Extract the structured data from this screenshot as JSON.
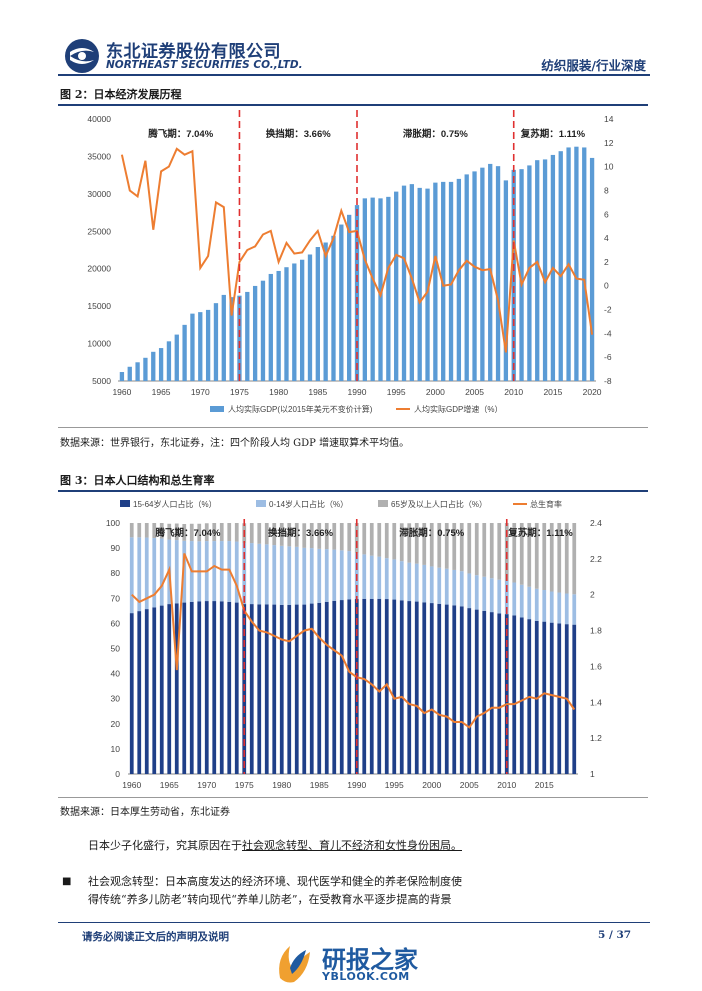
{
  "header": {
    "company_cn": "东北证券股份有限公司",
    "company_en": "NORTHEAST SECURITIES CO.,LTD.",
    "section": "纺织服装/行业深度"
  },
  "figure2": {
    "title": "图  2：日本经济发展历程",
    "source": "数据来源：世界银行，东北证券，注：四个阶段人均 GDP 增速取算术平均值。",
    "periods": [
      "腾飞期：7.04%",
      "换挡期：3.66%",
      "滞胀期：0.75%",
      "复苏期：1.11%"
    ],
    "legend": [
      "人均实际GDP(以2015年美元不变价计算)",
      "人均实际GDP增速（%）"
    ],
    "colors": {
      "bar": "#5b9bd5",
      "line": "#ed7d31",
      "divider": "#e03030"
    }
  },
  "figure3": {
    "title": "图  3：日本人口结构和总生育率",
    "source": "数据来源：日本厚生劳动省，东北证券",
    "periods": [
      "腾飞期：7.04%",
      "换挡期：3.66%",
      "滞胀期：0.75%",
      "复苏期：1.11%"
    ],
    "legend": [
      "15-64岁人口占比（%）",
      "0-14岁人口占比（%）",
      "65岁及以上人口占比（%）",
      "总生育率"
    ],
    "colors": {
      "working": "#1f3f88",
      "young": "#9dbde3",
      "old": "#b0b0b0",
      "line": "#ed7d31"
    }
  },
  "body": {
    "p1_pre": "日本少子化盛行，究其原因在于",
    "p1_ul": "社会观念转型、育儿不经济和女性身份困局。",
    "bullet": "■",
    "b1_line1_pre": "社会观念转型：",
    "b1_line1": "日本高度发达的经济环境、现代医学和健全的养老保险制度使",
    "b1_line2": "得传统“养多儿防老”转向现代“养单儿防老”，在受教育水平逐步提高的背景"
  },
  "footer": {
    "notice": "请务必阅读正文后的声明及说明",
    "page": "5 / 37",
    "watermark": "研报之家",
    "watermark_url": "YBLOOK.COM"
  },
  "chart_data": [
    {
      "type": "bar+line",
      "title": "日本经济发展历程",
      "x_ticks": [
        1960,
        1965,
        1970,
        1975,
        1980,
        1985,
        1990,
        1995,
        2000,
        2005,
        2010,
        2015,
        2020
      ],
      "y_left_ticks": [
        5000,
        10000,
        15000,
        20000,
        25000,
        30000,
        35000,
        40000
      ],
      "y_right_ticks": [
        -8,
        -6,
        -4,
        -2,
        0,
        2,
        4,
        6,
        8,
        10,
        12,
        14
      ],
      "ylim_left": [
        5000,
        40000
      ],
      "ylim_right": [
        -8,
        14
      ],
      "period_dividers": [
        1975,
        1990,
        2010
      ],
      "years": [
        1960,
        1961,
        1962,
        1963,
        1964,
        1965,
        1966,
        1967,
        1968,
        1969,
        1970,
        1971,
        1972,
        1973,
        1974,
        1975,
        1976,
        1977,
        1978,
        1979,
        1980,
        1981,
        1982,
        1983,
        1984,
        1985,
        1986,
        1987,
        1988,
        1989,
        1990,
        1991,
        1992,
        1993,
        1994,
        1995,
        1996,
        1997,
        1998,
        1999,
        2000,
        2001,
        2002,
        2003,
        2004,
        2005,
        2006,
        2007,
        2008,
        2009,
        2010,
        2011,
        2012,
        2013,
        2014,
        2015,
        2016,
        2017,
        2018,
        2019,
        2020
      ],
      "series": [
        {
          "name": "人均实际GDP(以2015年美元不变价计算)",
          "kind": "bar",
          "axis": "left",
          "values": [
            6200,
            6900,
            7500,
            8100,
            8900,
            9400,
            10300,
            11200,
            12500,
            14000,
            14200,
            14500,
            15400,
            16500,
            16200,
            16400,
            16900,
            17700,
            18400,
            19300,
            19700,
            20200,
            20700,
            21200,
            21900,
            22900,
            23500,
            24400,
            25900,
            27200,
            28500,
            29400,
            29500,
            29400,
            29600,
            30300,
            31100,
            31300,
            30800,
            30700,
            31500,
            31600,
            31600,
            32000,
            32600,
            33000,
            33500,
            34000,
            33700,
            31800,
            33200,
            33300,
            33800,
            34500,
            34600,
            35200,
            35700,
            36200,
            36300,
            36200,
            34800
          ]
        },
        {
          "name": "人均实际GDP增速（%）",
          "kind": "line",
          "axis": "right",
          "values": [
            11.0,
            8.0,
            7.5,
            10.5,
            4.7,
            9.6,
            10.0,
            11.5,
            11.0,
            11.3,
            1.5,
            2.5,
            7.0,
            6.6,
            -2.5,
            2.0,
            3.0,
            3.3,
            4.3,
            4.6,
            2.0,
            3.6,
            2.7,
            2.8,
            3.8,
            4.6,
            2.5,
            4.0,
            6.3,
            4.5,
            4.6,
            2.2,
            0.6,
            -0.8,
            1.5,
            2.6,
            2.3,
            0.6,
            -1.4,
            -0.5,
            2.5,
            0.0,
            0.1,
            1.3,
            2.1,
            1.6,
            1.3,
            1.4,
            -1.2,
            -5.6,
            3.8,
            0.1,
            1.5,
            2.0,
            0.3,
            1.5,
            0.8,
            1.8,
            0.6,
            0.5,
            -4.1
          ]
        }
      ]
    },
    {
      "type": "stacked-bar+line",
      "title": "日本人口结构和总生育率",
      "x_ticks": [
        1960,
        1965,
        1970,
        1975,
        1980,
        1985,
        1990,
        1995,
        2000,
        2005,
        2010,
        2015
      ],
      "y_left_ticks": [
        0,
        10,
        20,
        30,
        40,
        50,
        60,
        70,
        80,
        90,
        100
      ],
      "y_right_ticks": [
        1,
        1.2,
        1.4,
        1.6,
        1.8,
        2,
        2.2,
        2.4
      ],
      "ylim_left": [
        0,
        100
      ],
      "ylim_right": [
        1,
        2.4
      ],
      "period_dividers": [
        1975,
        1990,
        2010
      ],
      "years": [
        1960,
        1961,
        1962,
        1963,
        1964,
        1965,
        1966,
        1967,
        1968,
        1969,
        1970,
        1971,
        1972,
        1973,
        1974,
        1975,
        1976,
        1977,
        1978,
        1979,
        1980,
        1981,
        1982,
        1983,
        1984,
        1985,
        1986,
        1987,
        1988,
        1989,
        1990,
        1991,
        1992,
        1993,
        1994,
        1995,
        1996,
        1997,
        1998,
        1999,
        2000,
        2001,
        2002,
        2003,
        2004,
        2005,
        2006,
        2007,
        2008,
        2009,
        2010,
        2011,
        2012,
        2013,
        2014,
        2015,
        2016,
        2017,
        2018,
        2019
      ],
      "series": [
        {
          "name": "15-64岁人口占比（%）",
          "values": [
            64.1,
            64.9,
            65.7,
            66.4,
            67.1,
            67.7,
            68.0,
            68.3,
            68.6,
            68.8,
            68.9,
            68.9,
            68.8,
            68.6,
            68.3,
            67.7,
            67.7,
            67.6,
            67.6,
            67.5,
            67.4,
            67.4,
            67.5,
            67.5,
            67.9,
            68.2,
            68.6,
            69.0,
            69.3,
            69.6,
            69.7,
            69.8,
            69.8,
            69.8,
            69.7,
            69.5,
            69.2,
            68.9,
            68.7,
            68.4,
            68.1,
            67.8,
            67.5,
            67.2,
            66.8,
            66.1,
            65.5,
            65.0,
            64.5,
            64.0,
            63.7,
            63.2,
            62.4,
            61.7,
            61.0,
            60.7,
            60.3,
            60.0,
            59.7,
            59.5
          ]
        },
        {
          "name": "0-14岁人口占比（%）",
          "values": [
            30.2,
            29.4,
            28.5,
            27.6,
            26.7,
            25.7,
            25.2,
            24.6,
            24.2,
            23.9,
            23.9,
            23.9,
            24.0,
            24.2,
            24.3,
            24.3,
            24.3,
            24.1,
            23.9,
            23.7,
            23.5,
            23.3,
            23.0,
            22.6,
            22.1,
            21.5,
            21.0,
            20.4,
            19.8,
            19.2,
            18.2,
            17.7,
            17.2,
            16.8,
            16.3,
            16.0,
            15.6,
            15.3,
            15.1,
            14.9,
            14.6,
            14.4,
            14.3,
            14.1,
            14.0,
            13.8,
            13.7,
            13.6,
            13.5,
            13.4,
            13.2,
            13.1,
            13.0,
            12.9,
            12.8,
            12.6,
            12.4,
            12.3,
            12.2,
            12.1
          ]
        },
        {
          "name": "65岁及以上人口占比（%）",
          "values": [
            5.7,
            5.7,
            5.8,
            6.0,
            6.2,
            6.3,
            6.6,
            6.7,
            6.9,
            7.0,
            7.1,
            7.2,
            7.3,
            7.5,
            7.6,
            7.9,
            8.1,
            8.4,
            8.6,
            8.9,
            9.1,
            9.4,
            9.6,
            9.8,
            10.0,
            10.3,
            10.5,
            10.8,
            11.1,
            11.5,
            12.1,
            12.6,
            13.1,
            13.5,
            14.0,
            14.5,
            15.1,
            15.7,
            16.2,
            16.7,
            17.3,
            17.9,
            18.4,
            18.9,
            19.4,
            20.1,
            20.8,
            21.4,
            22.1,
            22.7,
            23.1,
            23.7,
            24.6,
            25.4,
            26.2,
            26.7,
            27.3,
            27.7,
            28.1,
            28.4
          ]
        },
        {
          "name": "总生育率",
          "values": [
            2.0,
            1.96,
            1.98,
            2.0,
            2.05,
            2.14,
            1.58,
            2.23,
            2.13,
            2.13,
            2.13,
            2.16,
            2.14,
            2.14,
            2.05,
            1.91,
            1.85,
            1.8,
            1.79,
            1.77,
            1.75,
            1.74,
            1.77,
            1.8,
            1.81,
            1.76,
            1.72,
            1.69,
            1.66,
            1.57,
            1.54,
            1.53,
            1.5,
            1.46,
            1.5,
            1.42,
            1.43,
            1.39,
            1.38,
            1.34,
            1.36,
            1.33,
            1.32,
            1.29,
            1.29,
            1.26,
            1.32,
            1.34,
            1.37,
            1.37,
            1.39,
            1.39,
            1.41,
            1.43,
            1.42,
            1.45,
            1.44,
            1.43,
            1.42,
            1.36
          ]
        }
      ]
    }
  ]
}
